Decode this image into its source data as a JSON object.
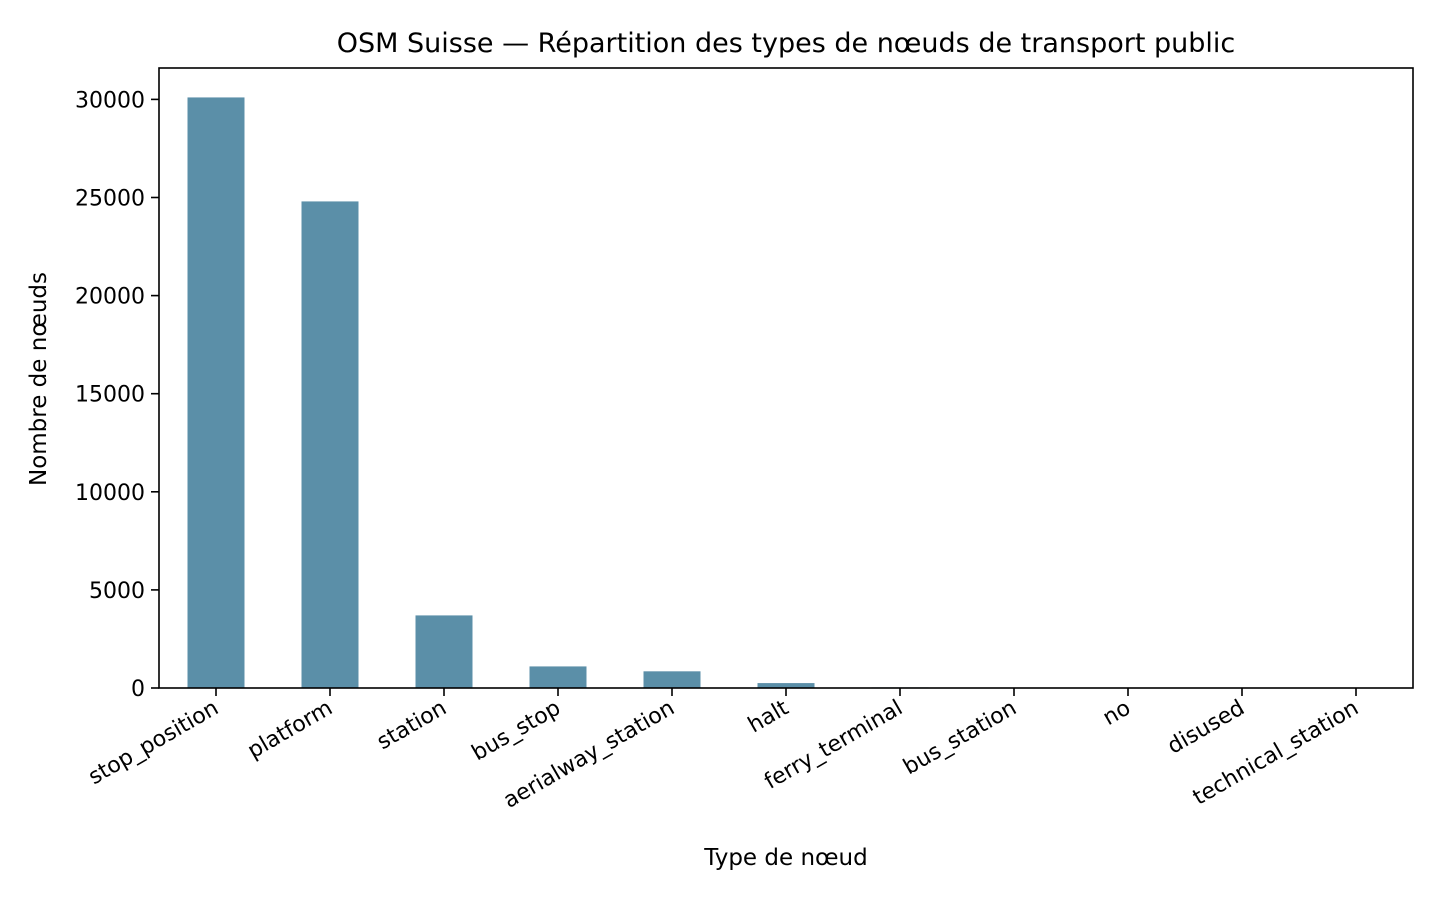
{
  "chart_data": {
    "type": "bar",
    "title": "OSM Suisse — Répartition des types de nœuds de transport public",
    "xlabel": "Type de nœud",
    "ylabel": "Nombre de nœuds",
    "categories": [
      "stop_position",
      "platform",
      "station",
      "bus_stop",
      "aerialway_station",
      "halt",
      "ferry_terminal",
      "bus_station",
      "no",
      "disused",
      "technical_station"
    ],
    "values": [
      30100,
      24800,
      3700,
      1100,
      850,
      250,
      30,
      20,
      5,
      3,
      1
    ],
    "ylim": [
      0,
      31600
    ],
    "yticks": [
      0,
      5000,
      10000,
      15000,
      20000,
      25000,
      30000
    ],
    "grid": false,
    "legend": "none",
    "bar_color": "#5b8fa8"
  }
}
